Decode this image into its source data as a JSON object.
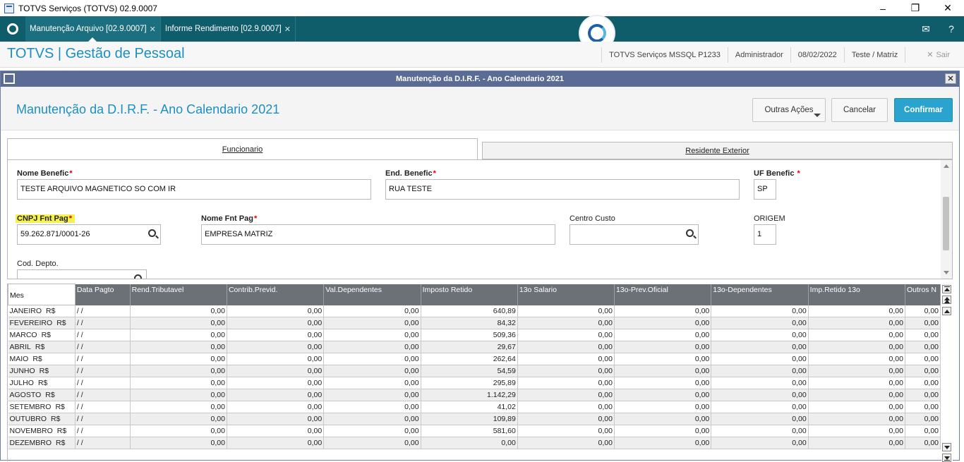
{
  "window": {
    "title": "TOTVS Serviços (TOTVS) 02.9.0007"
  },
  "tabs": [
    {
      "label": "Manutenção Arquivo [02.9.0007]"
    },
    {
      "label": "Informe Rendimento [02.9.0007]"
    }
  ],
  "header": {
    "brand": "TOTVS | Gestão de Pessoal",
    "server": "TOTVS Serviços MSSQL P1233",
    "user": "Administrador",
    "date": "08/02/2022",
    "branch": "Teste / Matriz",
    "exit": "Sair"
  },
  "dialog": {
    "title": "Manutenção da D.I.R.F. - Ano Calendario 2021",
    "heading": "Manutenção da D.I.R.F. - Ano Calendario 2021",
    "more_actions": "Outras Ações",
    "cancel": "Cancelar",
    "confirm": "Confirmar",
    "tab_employee": "Funcionario",
    "tab_resident": "Residente Exterior"
  },
  "form": {
    "nome_benefic_label": "Nome Benefic",
    "nome_benefic_value": "TESTE ARQUIVO MAGNETICO SO COM IR",
    "end_benefic_label": "End. Benefic",
    "end_benefic_value": "RUA TESTE",
    "uf_benefic_label": "UF Benefic",
    "uf_benefic_value": "SP",
    "cnpj_label": "CNPJ Fnt Pag",
    "cnpj_value": "59.262.871/0001-26",
    "nome_fnt_label": "Nome Fnt Pag",
    "nome_fnt_value": "EMPRESA MATRIZ",
    "centro_custo_label": "Centro Custo",
    "centro_custo_value": "",
    "origem_label": "ORIGEM",
    "origem_value": "1",
    "cod_depto_label": "Cod. Depto.",
    "required_mark": "*"
  },
  "grid": {
    "columns": [
      "Mes",
      "Data Pagto",
      "Rend.Tributavel",
      "Contrib.Previd.",
      "Val.Dependentes",
      "Imposto Retido",
      "13o  Salario",
      "13o-Prev.Oficial",
      "13o-Dependentes",
      "Imp.Retido 13o",
      "Outros N"
    ],
    "rows": [
      [
        "JANEIRO",
        "R$",
        "/  /",
        "0,00",
        "0,00",
        "0,00",
        "640,89",
        "0,00",
        "0,00",
        "0,00",
        "0,00",
        "0,00"
      ],
      [
        "FEVEREIRO",
        "R$",
        "/  /",
        "0,00",
        "0,00",
        "0,00",
        "84,32",
        "0,00",
        "0,00",
        "0,00",
        "0,00",
        "0,00"
      ],
      [
        "MARCO",
        "R$",
        "/  /",
        "0,00",
        "0,00",
        "0,00",
        "509,36",
        "0,00",
        "0,00",
        "0,00",
        "0,00",
        "0,00"
      ],
      [
        "ABRIL",
        "R$",
        "/  /",
        "0,00",
        "0,00",
        "0,00",
        "29,67",
        "0,00",
        "0,00",
        "0,00",
        "0,00",
        "0,00"
      ],
      [
        "MAIO",
        "R$",
        "/  /",
        "0,00",
        "0,00",
        "0,00",
        "262,64",
        "0,00",
        "0,00",
        "0,00",
        "0,00",
        "0,00"
      ],
      [
        "JUNHO",
        "R$",
        "/  /",
        "0,00",
        "0,00",
        "0,00",
        "54,59",
        "0,00",
        "0,00",
        "0,00",
        "0,00",
        "0,00"
      ],
      [
        "JULHO",
        "R$",
        "/  /",
        "0,00",
        "0,00",
        "0,00",
        "295,89",
        "0,00",
        "0,00",
        "0,00",
        "0,00",
        "0,00"
      ],
      [
        "AGOSTO",
        "R$",
        "/  /",
        "0,00",
        "0,00",
        "0,00",
        "1.142,29",
        "0,00",
        "0,00",
        "0,00",
        "0,00",
        "0,00"
      ],
      [
        "SETEMBRO",
        "R$",
        "/  /",
        "0,00",
        "0,00",
        "0,00",
        "41,02",
        "0,00",
        "0,00",
        "0,00",
        "0,00",
        "0,00"
      ],
      [
        "OUTUBRO",
        "R$",
        "/  /",
        "0,00",
        "0,00",
        "0,00",
        "109,89",
        "0,00",
        "0,00",
        "0,00",
        "0,00",
        "0,00"
      ],
      [
        "NOVEMBRO",
        "R$",
        "/  /",
        "0,00",
        "0,00",
        "0,00",
        "581,60",
        "0,00",
        "0,00",
        "0,00",
        "0,00",
        "0,00"
      ],
      [
        "DEZEMBRO",
        "R$",
        "/  /",
        "0,00",
        "0,00",
        "0,00",
        "0,00",
        "0,00",
        "0,00",
        "0,00",
        "0,00",
        "0,00"
      ]
    ]
  },
  "colors": {
    "accent": "#1c8fc2",
    "tabbar": "#0f5c6b",
    "confirm": "#2aa3cf",
    "highlight": "#f6f14c"
  }
}
